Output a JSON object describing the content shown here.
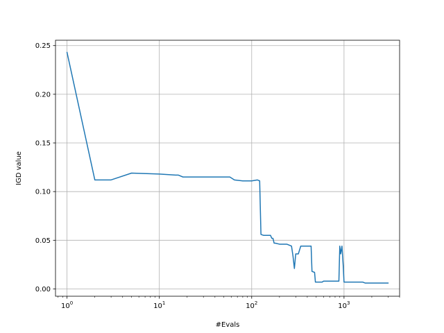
{
  "chart_data": {
    "type": "line",
    "title": "",
    "xlabel": "#Evals",
    "ylabel": "IGD value",
    "x_scale": "log",
    "xlim": [
      0.75,
      4000
    ],
    "ylim": [
      -0.0075,
      0.2555
    ],
    "grid": true,
    "colors": {
      "line": "#1f77b4",
      "grid": "#b0b0b0",
      "axes": "#000000"
    },
    "x_ticks": [
      {
        "value": 1,
        "base": "10",
        "exp": "0"
      },
      {
        "value": 10,
        "base": "10",
        "exp": "1"
      },
      {
        "value": 100,
        "base": "10",
        "exp": "2"
      },
      {
        "value": 1000,
        "base": "10",
        "exp": "3"
      }
    ],
    "y_ticks": [
      {
        "value": 0.0,
        "label": "0.00"
      },
      {
        "value": 0.05,
        "label": "0.05"
      },
      {
        "value": 0.1,
        "label": "0.10"
      },
      {
        "value": 0.15,
        "label": "0.15"
      },
      {
        "value": 0.2,
        "label": "0.20"
      },
      {
        "value": 0.25,
        "label": "0.25"
      }
    ],
    "series": [
      {
        "x": [
          1,
          2,
          3,
          5,
          10,
          15,
          16,
          18,
          25,
          40,
          58,
          65,
          80,
          100,
          115,
          122,
          126,
          135,
          160,
          165,
          170,
          175,
          180,
          200,
          240,
          270,
          280,
          290,
          300,
          320,
          340,
          360,
          380,
          440,
          450,
          480,
          490,
          520,
          580,
          600,
          700,
          860,
          880,
          900,
          920,
          950,
          980,
          1000,
          1200,
          1300,
          1600,
          1700,
          1800,
          2000,
          2500,
          3000
        ],
        "y": [
          0.243,
          0.112,
          0.112,
          0.119,
          0.118,
          0.117,
          0.117,
          0.115,
          0.115,
          0.115,
          0.115,
          0.112,
          0.111,
          0.111,
          0.112,
          0.111,
          0.056,
          0.055,
          0.055,
          0.052,
          0.052,
          0.047,
          0.047,
          0.046,
          0.046,
          0.044,
          0.034,
          0.021,
          0.036,
          0.036,
          0.044,
          0.044,
          0.044,
          0.044,
          0.018,
          0.017,
          0.007,
          0.007,
          0.007,
          0.008,
          0.008,
          0.008,
          0.008,
          0.044,
          0.036,
          0.044,
          0.024,
          0.007,
          0.007,
          0.007,
          0.007,
          0.006,
          0.006,
          0.006,
          0.006,
          0.006
        ]
      }
    ]
  }
}
